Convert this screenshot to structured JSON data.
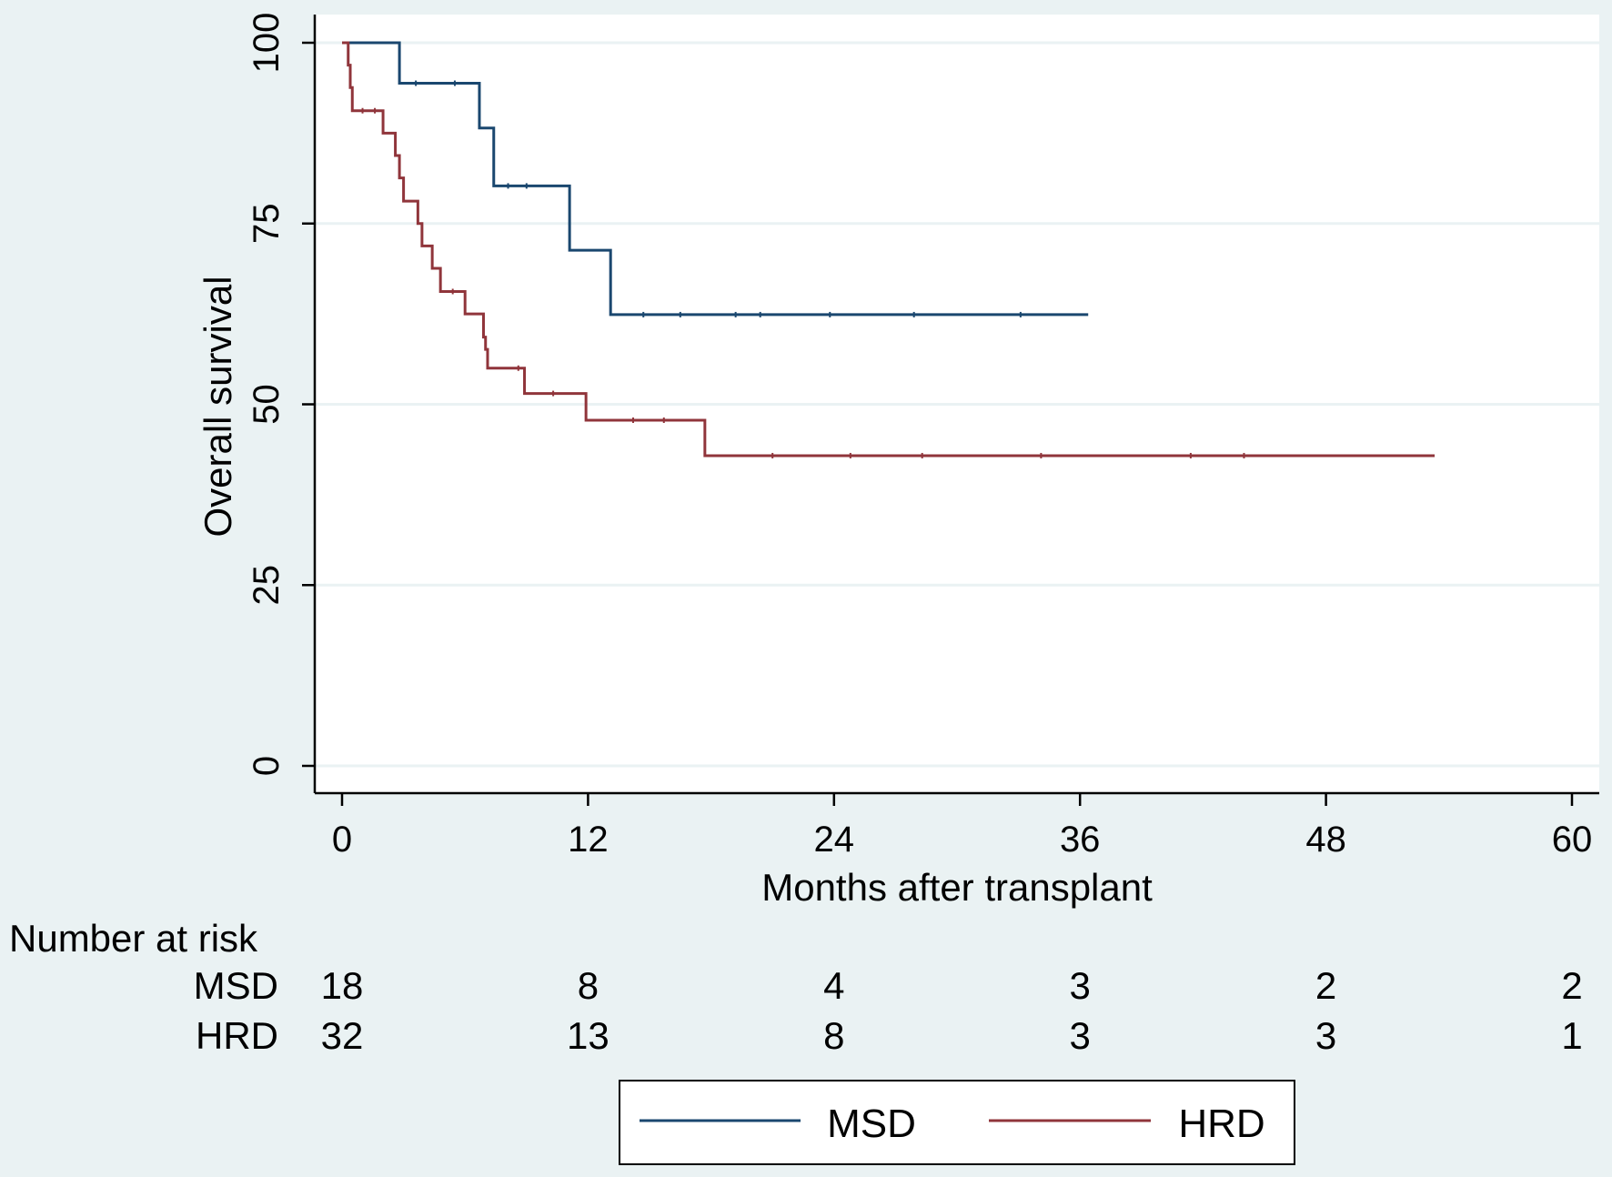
{
  "chart_data": {
    "type": "line",
    "step": true,
    "xlabel": "Months after transplant",
    "ylabel": "Overall survival",
    "xlim": [
      0,
      60
    ],
    "ylim": [
      0,
      100
    ],
    "xticks": [
      0,
      12,
      24,
      36,
      48,
      60
    ],
    "yticks": [
      0,
      25,
      50,
      75,
      100
    ],
    "grid": "horizontal",
    "legend_position": "bottom",
    "series": [
      {
        "name": "MSD",
        "color": "#1a476f",
        "x": [
          0,
          2.8,
          6.7,
          7.4,
          11.1,
          13.1,
          36.4
        ],
        "y": [
          100,
          94.4,
          88.2,
          80.2,
          71.3,
          62.4,
          62.4
        ],
        "censored_x": [
          3.6,
          5.5,
          8.1,
          9.0,
          14.7,
          16.5,
          19.2,
          20.4,
          23.8,
          27.9,
          33.1
        ]
      },
      {
        "name": "HRD",
        "color": "#90353b",
        "x": [
          0,
          0.3,
          0.4,
          0.5,
          0.6,
          2.0,
          2.6,
          2.8,
          3.0,
          3.7,
          3.9,
          4.0,
          4.4,
          4.8,
          6.0,
          6.9,
          7.0,
          7.1,
          8.9,
          11.9,
          17.7,
          53.3
        ],
        "y": [
          100,
          96.9,
          93.8,
          90.6,
          90.6,
          87.5,
          84.4,
          81.3,
          78.1,
          75.0,
          71.9,
          71.9,
          68.8,
          65.6,
          62.5,
          59.3,
          57.6,
          55.0,
          51.5,
          47.8,
          42.9,
          42.9
        ],
        "censored_x": [
          1.0,
          1.6,
          5.4,
          8.6,
          10.3,
          14.2,
          15.7,
          21.0,
          24.8,
          28.3,
          34.1,
          41.4,
          44.0
        ]
      }
    ]
  },
  "risk_table": {
    "title": "Number at risk",
    "times": [
      "0",
      "12",
      "24",
      "36",
      "48",
      "60"
    ],
    "rows": [
      {
        "label": "MSD",
        "counts": [
          "18",
          "8",
          "4",
          "3",
          "2",
          "2"
        ]
      },
      {
        "label": "HRD",
        "counts": [
          "32",
          "13",
          "8",
          "3",
          "3",
          "1"
        ]
      }
    ]
  },
  "legend": {
    "items": [
      {
        "label": "MSD",
        "color": "#1a476f"
      },
      {
        "label": "HRD",
        "color": "#90353b"
      }
    ]
  },
  "colors": {
    "background": "#eaf2f3",
    "plot_region": "#ffffff",
    "grid": "#eaf2f3",
    "axis": "#000000"
  }
}
